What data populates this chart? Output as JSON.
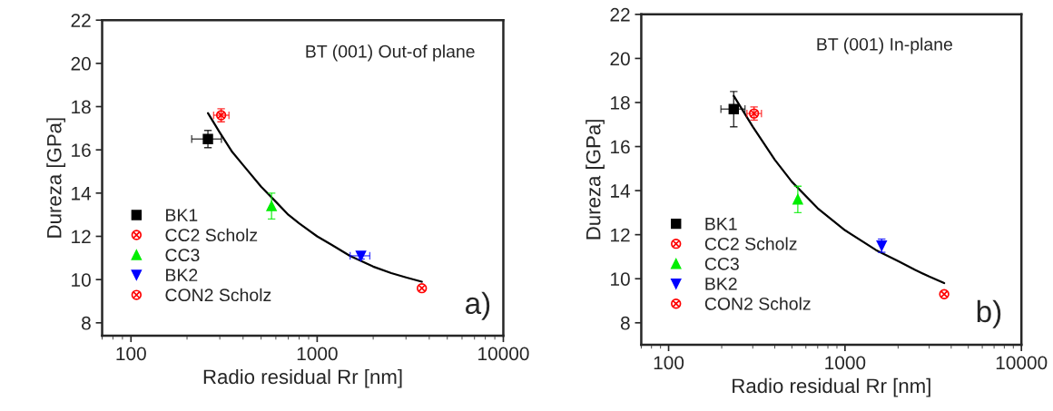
{
  "chart_data": [
    {
      "type": "scatter",
      "xlabel": "Radio residual Rr [nm]",
      "ylabel": "Dureza [GPa]",
      "log": "x",
      "xlim": [
        70,
        10000
      ],
      "xticks": [
        100,
        1000,
        10000
      ],
      "ylim": [
        7.4,
        22
      ],
      "yticks": [
        8,
        10,
        12,
        14,
        16,
        18,
        20,
        22
      ],
      "grid": false,
      "legend": "bottom left",
      "annotations": [
        "BT (001) Out-of plane",
        "a)"
      ],
      "series": [
        {
          "name": "BK1",
          "color": "#000000",
          "marker": "square",
          "x": [
            259
          ],
          "values": [
            16.5
          ],
          "errors": [
            0.4
          ],
          "xerrors": [
            [
              212,
              306
            ]
          ]
        },
        {
          "name": "CC2 Scholz",
          "color": "#ff0000",
          "marker": "cross",
          "x": [
            305
          ],
          "values": [
            17.6
          ],
          "errors": [
            0.3
          ],
          "xerrors": [
            [
              278,
              336
            ]
          ]
        },
        {
          "name": "CC3",
          "color": "#00ee00",
          "marker": "triangle",
          "x": [
            569
          ],
          "values": [
            13.4
          ],
          "errors": [
            0.6
          ],
          "xerrors": [
            null
          ]
        },
        {
          "name": "BK2",
          "color": "#0000ff",
          "marker": "triangle-down",
          "x": [
            1718
          ],
          "values": [
            11.1
          ],
          "errors": [
            0.15
          ],
          "xerrors": [
            [
              1503,
              1918
            ]
          ]
        },
        {
          "name": "CON2 Scholz",
          "color": "#ff0000",
          "marker": "cross",
          "x": [
            3650
          ],
          "values": [
            9.6
          ],
          "errors": [
            null
          ],
          "xerrors": [
            null
          ]
        },
        {
          "type": "line",
          "color": "#000000",
          "marker": "none",
          "line_style": "solid",
          "x": [
            259,
            300,
            350,
            400,
            500,
            600,
            700,
            800,
            1000,
            1200,
            1500,
            2000,
            2500,
            3000,
            3650
          ],
          "values": [
            17.7,
            16.8,
            15.9,
            15.3,
            14.3,
            13.6,
            13.0,
            12.6,
            12.0,
            11.6,
            11.1,
            10.6,
            10.3,
            10.1,
            9.9
          ]
        }
      ]
    },
    {
      "type": "scatter",
      "xlabel": "Radio residual Rr [nm]",
      "ylabel": "Dureza [GPa]",
      "log": "x",
      "xlim": [
        70,
        10000
      ],
      "xticks": [
        100,
        1000,
        10000
      ],
      "ylim": [
        7,
        22
      ],
      "yticks": [
        8,
        10,
        12,
        14,
        16,
        18,
        20,
        22
      ],
      "grid": false,
      "legend": "bottom left",
      "annotations": [
        "BT (001) In-plane",
        "b)"
      ],
      "series": [
        {
          "name": "BK1",
          "color": "#000000",
          "marker": "square",
          "x": [
            234
          ],
          "values": [
            17.7
          ],
          "errors": [
            0.8
          ],
          "xerrors": [
            [
              198,
              271
            ]
          ]
        },
        {
          "name": "CC2 Scholz",
          "color": "#ff0000",
          "marker": "cross",
          "x": [
            305
          ],
          "values": [
            17.5
          ],
          "errors": [
            0.3
          ],
          "xerrors": [
            [
              278,
              336
            ]
          ]
        },
        {
          "name": "CC3",
          "color": "#00ee00",
          "marker": "triangle",
          "x": [
            540
          ],
          "values": [
            13.6
          ],
          "errors": [
            0.6
          ],
          "xerrors": [
            null
          ]
        },
        {
          "name": "BK2",
          "color": "#0000ff",
          "marker": "triangle-down",
          "x": [
            1614
          ],
          "values": [
            11.5
          ],
          "errors": [
            0.3
          ],
          "xerrors": [
            null
          ]
        },
        {
          "name": "CON2 Scholz",
          "color": "#ff0000",
          "marker": "cross",
          "x": [
            3650
          ],
          "values": [
            9.3
          ],
          "errors": [
            null
          ],
          "xerrors": [
            null
          ]
        },
        {
          "type": "line",
          "color": "#000000",
          "marker": "none",
          "line_style": "solid",
          "x": [
            234,
            300,
            400,
            500,
            700,
            1000,
            1500,
            2000,
            2500,
            3000,
            3650
          ],
          "values": [
            18.3,
            16.9,
            15.4,
            14.4,
            13.2,
            12.2,
            11.3,
            10.8,
            10.4,
            10.1,
            9.8
          ]
        }
      ]
    }
  ]
}
